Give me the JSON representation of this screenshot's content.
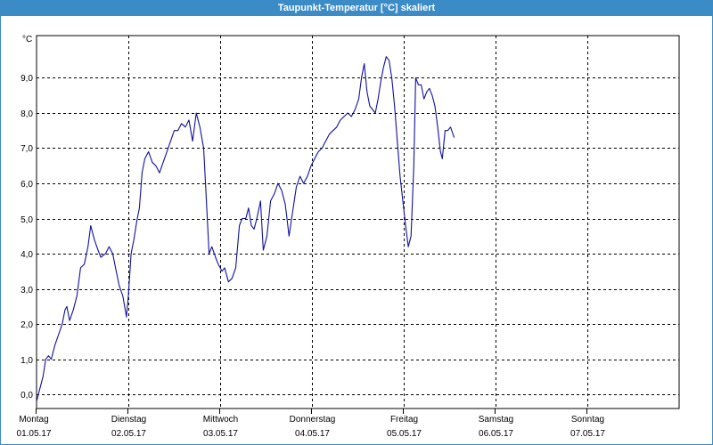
{
  "window": {
    "title": "Taupunkt-Temperatur [°C] skaliert"
  },
  "chart_data": {
    "type": "line",
    "title": "Taupunkt-Temperatur [°C] skaliert",
    "ylabel": "°C",
    "xlabel": "",
    "ylim": [
      -0.4,
      10.2
    ],
    "xlim": [
      0,
      7
    ],
    "grid": true,
    "line_color": "#1010a0",
    "grid_color": "#000000",
    "y_ticks": [
      {
        "v": 0,
        "label": "0,0"
      },
      {
        "v": 1,
        "label": "1,0"
      },
      {
        "v": 2,
        "label": "2,0"
      },
      {
        "v": 3,
        "label": "3,0"
      },
      {
        "v": 4,
        "label": "4,0"
      },
      {
        "v": 5,
        "label": "5,0"
      },
      {
        "v": 6,
        "label": "6,0"
      },
      {
        "v": 7,
        "label": "7,0"
      },
      {
        "v": 8,
        "label": "8,0"
      },
      {
        "v": 9,
        "label": "9,0"
      }
    ],
    "x_ticks": [
      {
        "v": 0,
        "day": "Montag",
        "date": "01.05.17"
      },
      {
        "v": 1,
        "day": "Dienstag",
        "date": "02.05.17"
      },
      {
        "v": 2,
        "day": "Mittwoch",
        "date": "03.05.17"
      },
      {
        "v": 3,
        "day": "Donnerstag",
        "date": "04.05.17"
      },
      {
        "v": 4,
        "day": "Freitag",
        "date": "05.05.17"
      },
      {
        "v": 5,
        "day": "Samstag",
        "date": "06.05.17"
      },
      {
        "v": 6,
        "day": "Sonntag",
        "date": "07.05.17"
      }
    ],
    "series": [
      {
        "values": [
          [
            0.0,
            -0.2
          ],
          [
            0.03,
            0.1
          ],
          [
            0.07,
            0.5
          ],
          [
            0.1,
            1.0
          ],
          [
            0.13,
            1.1
          ],
          [
            0.16,
            1.0
          ],
          [
            0.2,
            1.4
          ],
          [
            0.24,
            1.7
          ],
          [
            0.28,
            2.0
          ],
          [
            0.31,
            2.4
          ],
          [
            0.33,
            2.5
          ],
          [
            0.36,
            2.1
          ],
          [
            0.4,
            2.4
          ],
          [
            0.44,
            2.8
          ],
          [
            0.48,
            3.6
          ],
          [
            0.52,
            3.7
          ],
          [
            0.56,
            4.2
          ],
          [
            0.59,
            4.8
          ],
          [
            0.63,
            4.4
          ],
          [
            0.67,
            4.1
          ],
          [
            0.7,
            3.9
          ],
          [
            0.75,
            4.0
          ],
          [
            0.79,
            4.2
          ],
          [
            0.83,
            4.0
          ],
          [
            0.86,
            3.6
          ],
          [
            0.9,
            3.1
          ],
          [
            0.94,
            2.8
          ],
          [
            0.98,
            2.2
          ],
          [
            1.0,
            2.8
          ],
          [
            1.03,
            4.0
          ],
          [
            1.06,
            4.4
          ],
          [
            1.09,
            4.9
          ],
          [
            1.12,
            5.3
          ],
          [
            1.15,
            6.3
          ],
          [
            1.18,
            6.7
          ],
          [
            1.22,
            6.9
          ],
          [
            1.26,
            6.6
          ],
          [
            1.3,
            6.5
          ],
          [
            1.34,
            6.3
          ],
          [
            1.38,
            6.6
          ],
          [
            1.42,
            6.9
          ],
          [
            1.46,
            7.2
          ],
          [
            1.5,
            7.5
          ],
          [
            1.54,
            7.5
          ],
          [
            1.58,
            7.7
          ],
          [
            1.62,
            7.6
          ],
          [
            1.66,
            7.8
          ],
          [
            1.7,
            7.2
          ],
          [
            1.74,
            8.0
          ],
          [
            1.78,
            7.6
          ],
          [
            1.82,
            7.0
          ],
          [
            1.85,
            5.5
          ],
          [
            1.88,
            4.0
          ],
          [
            1.91,
            4.2
          ],
          [
            1.95,
            3.9
          ],
          [
            1.98,
            3.7
          ],
          [
            2.02,
            3.5
          ],
          [
            2.05,
            3.6
          ],
          [
            2.09,
            3.2
          ],
          [
            2.13,
            3.3
          ],
          [
            2.17,
            3.6
          ],
          [
            2.21,
            4.8
          ],
          [
            2.24,
            5.0
          ],
          [
            2.28,
            5.0
          ],
          [
            2.31,
            5.3
          ],
          [
            2.34,
            4.8
          ],
          [
            2.37,
            4.7
          ],
          [
            2.4,
            5.0
          ],
          [
            2.44,
            5.5
          ],
          [
            2.47,
            4.1
          ],
          [
            2.51,
            4.5
          ],
          [
            2.55,
            5.5
          ],
          [
            2.59,
            5.7
          ],
          [
            2.63,
            6.0
          ],
          [
            2.67,
            5.8
          ],
          [
            2.71,
            5.4
          ],
          [
            2.75,
            4.5
          ],
          [
            2.79,
            5.2
          ],
          [
            2.83,
            5.9
          ],
          [
            2.87,
            6.2
          ],
          [
            2.91,
            6.0
          ],
          [
            2.95,
            6.2
          ],
          [
            2.99,
            6.5
          ],
          [
            3.03,
            6.7
          ],
          [
            3.07,
            6.9
          ],
          [
            3.11,
            7.0
          ],
          [
            3.15,
            7.2
          ],
          [
            3.19,
            7.4
          ],
          [
            3.23,
            7.5
          ],
          [
            3.27,
            7.6
          ],
          [
            3.31,
            7.8
          ],
          [
            3.35,
            7.9
          ],
          [
            3.39,
            8.0
          ],
          [
            3.43,
            7.9
          ],
          [
            3.47,
            8.1
          ],
          [
            3.51,
            8.4
          ],
          [
            3.54,
            9.0
          ],
          [
            3.57,
            9.4
          ],
          [
            3.6,
            8.6
          ],
          [
            3.63,
            8.2
          ],
          [
            3.66,
            8.1
          ],
          [
            3.69,
            8.0
          ],
          [
            3.72,
            8.4
          ],
          [
            3.75,
            8.9
          ],
          [
            3.78,
            9.3
          ],
          [
            3.81,
            9.6
          ],
          [
            3.84,
            9.5
          ],
          [
            3.87,
            9.0
          ],
          [
            3.9,
            8.2
          ],
          [
            3.93,
            7.2
          ],
          [
            3.96,
            6.2
          ],
          [
            3.99,
            5.5
          ],
          [
            4.02,
            4.8
          ],
          [
            4.05,
            4.2
          ],
          [
            4.08,
            4.5
          ],
          [
            4.11,
            6.5
          ],
          [
            4.13,
            9.0
          ],
          [
            4.16,
            8.8
          ],
          [
            4.19,
            8.8
          ],
          [
            4.22,
            8.4
          ],
          [
            4.25,
            8.6
          ],
          [
            4.28,
            8.7
          ],
          [
            4.31,
            8.5
          ],
          [
            4.34,
            8.2
          ],
          [
            4.37,
            7.6
          ],
          [
            4.4,
            6.9
          ],
          [
            4.42,
            6.7
          ],
          [
            4.45,
            7.5
          ],
          [
            4.48,
            7.5
          ],
          [
            4.51,
            7.6
          ],
          [
            4.55,
            7.3
          ]
        ]
      }
    ]
  }
}
